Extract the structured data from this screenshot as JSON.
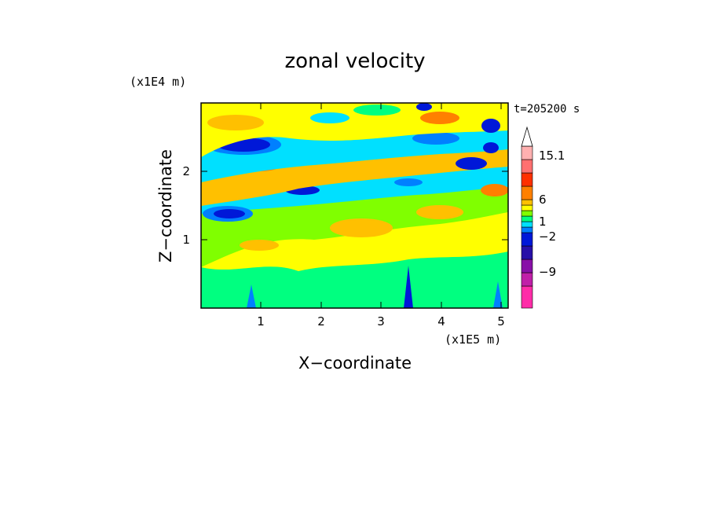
{
  "chart_data": {
    "type": "heatmap",
    "title": "zonal velocity",
    "xlabel": "X−coordinate",
    "ylabel": "Z−coordinate",
    "x_scale_label": "(x1E5 m)",
    "y_scale_label": "(x1E4 m)",
    "time_label": "t=205200 s",
    "xlim": [
      0,
      5.15
    ],
    "ylim": [
      0,
      2.98
    ],
    "x_ticks": [
      "1",
      "2",
      "3",
      "4",
      "5"
    ],
    "y_ticks": [
      "1",
      "2"
    ],
    "colorbar": {
      "labels": [
        "15.1",
        "6",
        "1",
        "−2",
        "−9"
      ],
      "colors": [
        "#ff2ca8",
        "#c020a8",
        "#8810a8",
        "#2810a8",
        "#0018d8",
        "#0080ff",
        "#00e0ff",
        "#00ff80",
        "#80ff00",
        "#ffff00",
        "#ffc000",
        "#ff8000",
        "#ff3000",
        "#ff7070",
        "#ffb0b0"
      ]
    },
    "pattern": [
      {
        "band": "mixed bands",
        "z_range": [
          2.5,
          2.98
        ]
      },
      {
        "band": "negative (blue) band",
        "z_range": [
          2.2,
          2.5
        ]
      },
      {
        "band": "positive (orange) band",
        "z_range": [
          1.9,
          2.2
        ]
      },
      {
        "band": "negative (cyan/blue) band",
        "z_range": [
          1.6,
          1.9
        ]
      },
      {
        "band": "positive (yellow/orange) band",
        "z_range": [
          1.0,
          1.6
        ]
      },
      {
        "band": "near-zero (green/yellow)",
        "z_range": [
          0,
          1.0
        ]
      }
    ]
  }
}
